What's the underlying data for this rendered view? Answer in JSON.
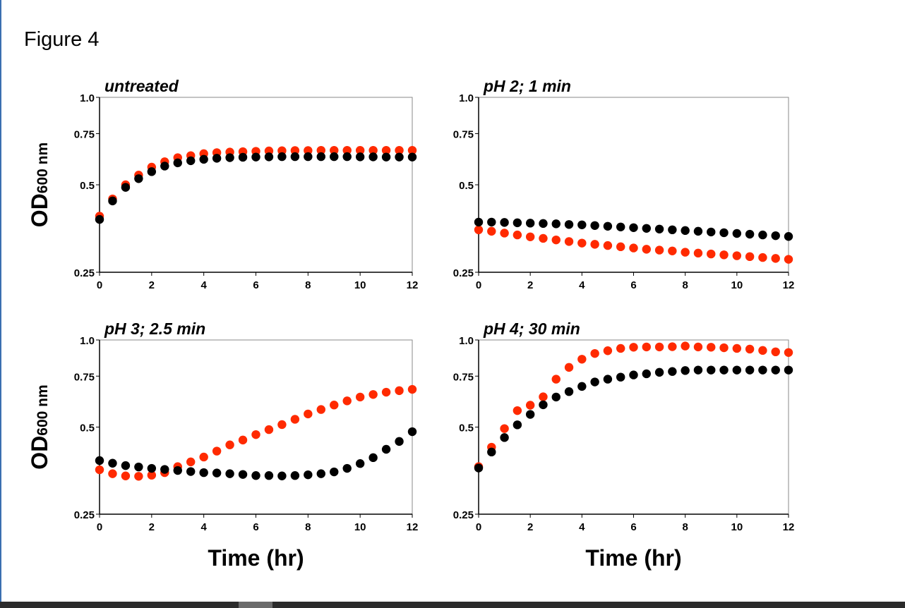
{
  "figure_title": "Figure 4",
  "chart_data": [
    {
      "type": "scatter",
      "title": "untreated",
      "xlabel": "",
      "ylabel": "OD600 nm",
      "ylabel_main": "OD",
      "ylabel_sub": "600 nm",
      "xlim": [
        0,
        12
      ],
      "ylim": [
        0.25,
        1.0
      ],
      "yscale": "log",
      "grid": false,
      "xticks": [
        "0",
        "2",
        "4",
        "6",
        "8",
        "10",
        "12"
      ],
      "yticks": [
        "1.0",
        "0.75",
        "0.5",
        "0.25"
      ],
      "x": [
        0,
        0.5,
        1,
        1.5,
        2,
        2.5,
        3,
        3.5,
        4,
        4.5,
        5,
        5.5,
        6,
        6.5,
        7,
        7.5,
        8,
        8.5,
        9,
        9.5,
        10,
        10.5,
        11,
        11.5,
        12
      ],
      "series": [
        {
          "color": "#ff2a00",
          "values": [
            0.39,
            0.447,
            0.5,
            0.54,
            0.575,
            0.6,
            0.62,
            0.63,
            0.64,
            0.645,
            0.648,
            0.65,
            0.652,
            0.654,
            0.655,
            0.656,
            0.656,
            0.657,
            0.657,
            0.657,
            0.657,
            0.657,
            0.657,
            0.657,
            0.657
          ]
        },
        {
          "color": "#000000",
          "values": [
            0.38,
            0.44,
            0.49,
            0.525,
            0.555,
            0.58,
            0.595,
            0.605,
            0.612,
            0.617,
            0.62,
            0.622,
            0.623,
            0.624,
            0.625,
            0.625,
            0.625,
            0.625,
            0.625,
            0.625,
            0.624,
            0.624,
            0.623,
            0.623,
            0.623
          ]
        }
      ]
    },
    {
      "type": "scatter",
      "title": "pH 2; 1 min",
      "xlabel": "",
      "ylabel": "",
      "xlim": [
        0,
        12
      ],
      "ylim": [
        0.25,
        1.0
      ],
      "yscale": "log",
      "grid": false,
      "xticks": [
        "0",
        "2",
        "4",
        "6",
        "8",
        "10",
        "12"
      ],
      "yticks": [
        "1.0",
        "0.75",
        "0.5",
        "0.25"
      ],
      "x": [
        0,
        0.5,
        1,
        1.5,
        2,
        2.5,
        3,
        3.5,
        4,
        4.5,
        5,
        5.5,
        6,
        6.5,
        7,
        7.5,
        8,
        8.5,
        9,
        9.5,
        10,
        10.5,
        11,
        11.5,
        12
      ],
      "series": [
        {
          "color": "#ff2a00",
          "values": [
            0.35,
            0.346,
            0.341,
            0.336,
            0.331,
            0.327,
            0.323,
            0.319,
            0.315,
            0.312,
            0.309,
            0.306,
            0.303,
            0.3,
            0.298,
            0.296,
            0.293,
            0.291,
            0.289,
            0.287,
            0.285,
            0.283,
            0.281,
            0.279,
            0.277
          ]
        },
        {
          "color": "#000000",
          "values": [
            0.372,
            0.372,
            0.371,
            0.37,
            0.369,
            0.368,
            0.367,
            0.365,
            0.364,
            0.362,
            0.36,
            0.358,
            0.356,
            0.354,
            0.352,
            0.35,
            0.348,
            0.346,
            0.344,
            0.342,
            0.34,
            0.338,
            0.336,
            0.334,
            0.332
          ]
        }
      ]
    },
    {
      "type": "scatter",
      "title": "pH 3; 2.5 min",
      "xlabel": "Time (hr)",
      "ylabel": "OD600 nm",
      "ylabel_main": "OD",
      "ylabel_sub": "600 nm",
      "xlim": [
        0,
        12
      ],
      "ylim": [
        0.25,
        1.0
      ],
      "yscale": "log",
      "grid": false,
      "xticks": [
        "0",
        "2",
        "4",
        "6",
        "8",
        "10",
        "12"
      ],
      "yticks": [
        "1.0",
        "0.75",
        "0.5",
        "0.25"
      ],
      "x": [
        0,
        0.5,
        1,
        1.5,
        2,
        2.5,
        3,
        3.5,
        4,
        4.5,
        5,
        5.5,
        6,
        6.5,
        7,
        7.5,
        8,
        8.5,
        9,
        9.5,
        10,
        10.5,
        11,
        11.5,
        12
      ],
      "series": [
        {
          "color": "#ff2a00",
          "values": [
            0.356,
            0.345,
            0.339,
            0.338,
            0.341,
            0.348,
            0.365,
            0.379,
            0.394,
            0.413,
            0.434,
            0.451,
            0.471,
            0.49,
            0.51,
            0.532,
            0.555,
            0.575,
            0.596,
            0.616,
            0.635,
            0.648,
            0.66,
            0.668,
            0.675
          ]
        },
        {
          "color": "#000000",
          "values": [
            0.383,
            0.375,
            0.368,
            0.364,
            0.36,
            0.357,
            0.354,
            0.351,
            0.348,
            0.347,
            0.345,
            0.343,
            0.34,
            0.34,
            0.339,
            0.34,
            0.342,
            0.345,
            0.35,
            0.36,
            0.374,
            0.392,
            0.419,
            0.446,
            0.482
          ]
        }
      ]
    },
    {
      "type": "scatter",
      "title": "pH 4; 30 min",
      "xlabel": "Time (hr)",
      "ylabel": "",
      "xlim": [
        0,
        12
      ],
      "ylim": [
        0.25,
        1.0
      ],
      "yscale": "log",
      "grid": false,
      "xticks": [
        "0",
        "2",
        "4",
        "6",
        "8",
        "10",
        "12"
      ],
      "yticks": [
        "1.0",
        "0.75",
        "0.5",
        "0.25"
      ],
      "x": [
        0,
        0.5,
        1,
        1.5,
        2,
        2.5,
        3,
        3.5,
        4,
        4.5,
        5,
        5.5,
        6,
        6.5,
        7,
        7.5,
        8,
        8.5,
        9,
        9.5,
        10,
        10.5,
        11,
        11.5,
        12
      ],
      "series": [
        {
          "color": "#ff2a00",
          "values": [
            0.365,
            0.426,
            0.494,
            0.57,
            0.595,
            0.636,
            0.732,
            0.804,
            0.858,
            0.898,
            0.918,
            0.935,
            0.944,
            0.946,
            0.946,
            0.948,
            0.953,
            0.946,
            0.944,
            0.94,
            0.935,
            0.93,
            0.92,
            0.91,
            0.905
          ]
        },
        {
          "color": "#000000",
          "values": [
            0.361,
            0.41,
            0.46,
            0.509,
            0.553,
            0.597,
            0.635,
            0.663,
            0.691,
            0.716,
            0.732,
            0.744,
            0.757,
            0.764,
            0.773,
            0.778,
            0.784,
            0.787,
            0.787,
            0.787,
            0.787,
            0.787,
            0.787,
            0.787,
            0.787
          ]
        }
      ]
    }
  ]
}
